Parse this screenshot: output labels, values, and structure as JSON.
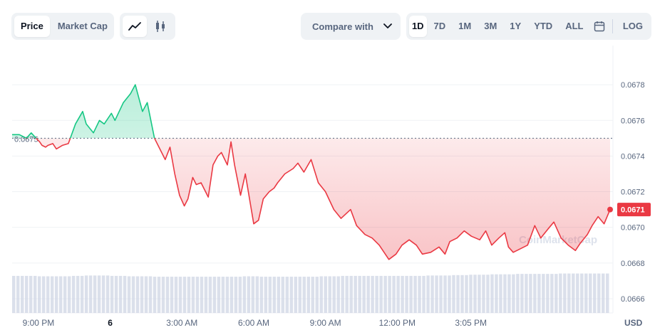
{
  "toolbar": {
    "type_tabs": [
      {
        "label": "Price",
        "active": true
      },
      {
        "label": "Market Cap",
        "active": false
      }
    ],
    "style_tabs": [
      {
        "icon": "line-chart-icon",
        "active": true
      },
      {
        "icon": "candlestick-icon",
        "active": false
      }
    ],
    "compare_label": "Compare with",
    "compare_icon": "chevron-down-icon",
    "ranges": [
      {
        "label": "1D",
        "active": true
      },
      {
        "label": "7D",
        "active": false
      },
      {
        "label": "1M",
        "active": false
      },
      {
        "label": "3M",
        "active": false
      },
      {
        "label": "1Y",
        "active": false
      },
      {
        "label": "YTD",
        "active": false
      },
      {
        "label": "ALL",
        "active": false
      }
    ],
    "calendar_icon": "calendar-icon",
    "log_label": "LOG"
  },
  "colors": {
    "up": "#16c784",
    "down": "#ea3943",
    "grid": "#eff2f5",
    "axis_text": "#58667e",
    "volume": "#cfd6e4",
    "baseline": "#58667e"
  },
  "watermark": "CoinMarketCap",
  "chart_data": {
    "type": "line",
    "baseline_value": 0.0675,
    "baseline_label": "0.0675",
    "current_value": 0.0671,
    "current_label": "0.0671",
    "ylim": [
      0.06652,
      0.06802
    ],
    "y_ticks": [
      "0.0678",
      "0.0676",
      "0.0674",
      "0.0672",
      "0.0670",
      "0.0668",
      "0.0666"
    ],
    "y_tick_values": [
      0.0678,
      0.0676,
      0.0674,
      0.0672,
      0.067,
      0.0668,
      0.0666
    ],
    "x_unit": "USD",
    "x_range_hours": [
      19.9,
      44.9
    ],
    "x_ticks": [
      "9:00 PM",
      "6",
      "3:00 AM",
      "6:00 AM",
      "9:00 AM",
      "12:00 PM",
      "3:05 PM"
    ],
    "x_tick_hours": [
      21,
      24,
      27,
      30,
      33,
      36,
      39.08
    ],
    "series": [
      {
        "x_hours": [
          19.9,
          20.2,
          20.5,
          20.7,
          20.9,
          21.05,
          21.15,
          21.3,
          21.4,
          21.6,
          21.75,
          22.0,
          22.25,
          22.55,
          22.85,
          23.0,
          23.3,
          23.55,
          23.75,
          24.05,
          24.2,
          24.55,
          24.85,
          25.05,
          25.35,
          25.55,
          25.85,
          26.3,
          26.5,
          26.7,
          26.9,
          27.1,
          27.25,
          27.45,
          27.6,
          27.8,
          28.1,
          28.3,
          28.5,
          28.65,
          28.9,
          29.05,
          29.2,
          29.45,
          29.65,
          30.0,
          30.2,
          30.4,
          30.65,
          30.85,
          31.0,
          31.3,
          31.65,
          31.85,
          32.1,
          32.4,
          32.7,
          33.0,
          33.35,
          33.65,
          34.05,
          34.3,
          34.65,
          34.95,
          35.25,
          35.65,
          35.95,
          36.2,
          36.5,
          36.8,
          37.05,
          37.4,
          37.75,
          38.0,
          38.2,
          38.5,
          38.8,
          39.1,
          39.45,
          39.7,
          39.95,
          40.25,
          40.5,
          40.65,
          40.85,
          41.15,
          41.45,
          41.75,
          42.0,
          42.3,
          42.55,
          42.85,
          43.15,
          43.45,
          43.65,
          43.95,
          44.15,
          44.4,
          44.65,
          44.9
        ],
        "values": [
          0.06752,
          0.06752,
          0.0675,
          0.06753,
          0.0675,
          0.06748,
          0.06746,
          0.06745,
          0.06746,
          0.06747,
          0.06744,
          0.06746,
          0.06747,
          0.06758,
          0.06765,
          0.06758,
          0.06753,
          0.0676,
          0.06758,
          0.06764,
          0.0676,
          0.0677,
          0.06775,
          0.0678,
          0.06765,
          0.0677,
          0.0675,
          0.06738,
          0.06745,
          0.0673,
          0.06718,
          0.06712,
          0.06716,
          0.06728,
          0.06724,
          0.06725,
          0.06717,
          0.06735,
          0.0674,
          0.06742,
          0.06735,
          0.06748,
          0.06735,
          0.06718,
          0.0673,
          0.06702,
          0.06704,
          0.06716,
          0.0672,
          0.06722,
          0.06725,
          0.0673,
          0.06733,
          0.06736,
          0.06731,
          0.06738,
          0.06725,
          0.0672,
          0.0671,
          0.06705,
          0.0671,
          0.06701,
          0.06696,
          0.06694,
          0.0669,
          0.06682,
          0.06685,
          0.0669,
          0.06693,
          0.0669,
          0.06685,
          0.06686,
          0.06689,
          0.06685,
          0.06692,
          0.06694,
          0.06698,
          0.06695,
          0.06693,
          0.06698,
          0.0669,
          0.06694,
          0.06697,
          0.06689,
          0.06686,
          0.06688,
          0.0669,
          0.06701,
          0.06694,
          0.06699,
          0.06703,
          0.06694,
          0.0669,
          0.06687,
          0.06691,
          0.06696,
          0.06701,
          0.06706,
          0.06702,
          0.0671
        ]
      }
    ],
    "volume": [
      0.93,
      0.93,
      0.93,
      0.93,
      0.92,
      0.92,
      0.92,
      0.92,
      0.92,
      0.92,
      0.93,
      0.93,
      0.94,
      0.94,
      0.94,
      0.94,
      0.93,
      0.93,
      0.93,
      0.92,
      0.92,
      0.92,
      0.92,
      0.91,
      0.91,
      0.91,
      0.91,
      0.91,
      0.91,
      0.91,
      0.91,
      0.91,
      0.91,
      0.91,
      0.91,
      0.91,
      0.91,
      0.91,
      0.92,
      0.92,
      0.92,
      0.91,
      0.91,
      0.91,
      0.91,
      0.91,
      0.91,
      0.91,
      0.91,
      0.91,
      0.91,
      0.92,
      0.92,
      0.92,
      0.92,
      0.93,
      0.93,
      0.93,
      0.93,
      0.93,
      0.93,
      0.93,
      0.93,
      0.93,
      0.93,
      0.93,
      0.93,
      0.93,
      0.93,
      0.94,
      0.94,
      0.94,
      0.94,
      0.95,
      0.95,
      0.95,
      0.96,
      0.96,
      0.96,
      0.96,
      0.97,
      0.97,
      0.97,
      0.97,
      0.98,
      0.98,
      0.98,
      0.98,
      0.98,
      0.98,
      0.98,
      0.99,
      0.99,
      0.99,
      0.99,
      0.99,
      0.99,
      0.99,
      0.99,
      0.99
    ]
  }
}
